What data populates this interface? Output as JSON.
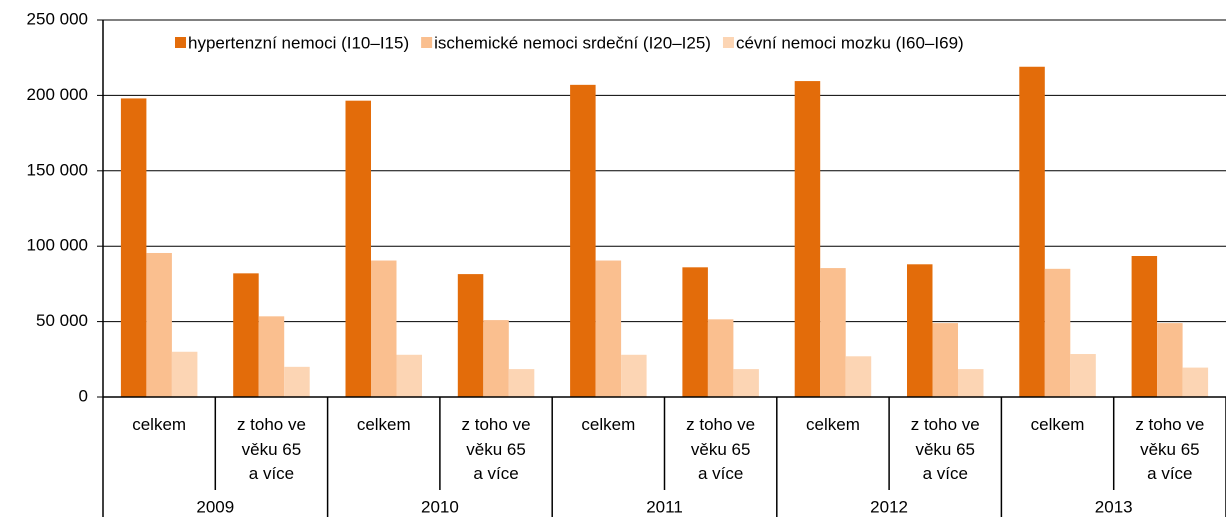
{
  "chart_data": {
    "type": "bar",
    "categories": [
      "celkem",
      "z toho ve\nvěku 65\na více",
      "celkem",
      "z toho ve\nvěku 65\na více",
      "celkem",
      "z toho ve\nvěku 65\na více",
      "celkem",
      "z toho ve\nvěku 65\na více",
      "celkem",
      "z toho ve\nvěku 65\na více"
    ],
    "groups": [
      "2009",
      "2010",
      "2011",
      "2012",
      "2013"
    ],
    "series": [
      {
        "name": "hypertenzní nemoci (I10–I15)",
        "color": "#e36c0a",
        "values": [
          198000,
          82000,
          196500,
          81500,
          207000,
          86000,
          209500,
          88000,
          219000,
          93500
        ]
      },
      {
        "name": "ischemické nemoci srdeční (I20–I25)",
        "color": "#fabf8f",
        "values": [
          95500,
          53500,
          90500,
          51000,
          90500,
          51500,
          85500,
          49000,
          85000,
          49000
        ]
      },
      {
        "name": "cévní nemoci mozku (I60–I69)",
        "color": "#fcd5b4",
        "values": [
          30000,
          20000,
          28000,
          18500,
          28000,
          18500,
          27000,
          18500,
          28500,
          19500
        ]
      }
    ],
    "ylim": [
      0,
      250000
    ],
    "yticks": [
      0,
      {
        "value": 50000,
        "label": "50 000"
      },
      {
        "value": 100000,
        "label": "100 000"
      },
      {
        "value": 150000,
        "label": "150 000"
      },
      {
        "value": 200000,
        "label": "200 000"
      },
      {
        "value": 250000,
        "label": "250 000"
      }
    ],
    "grid": true,
    "legend": "top"
  }
}
